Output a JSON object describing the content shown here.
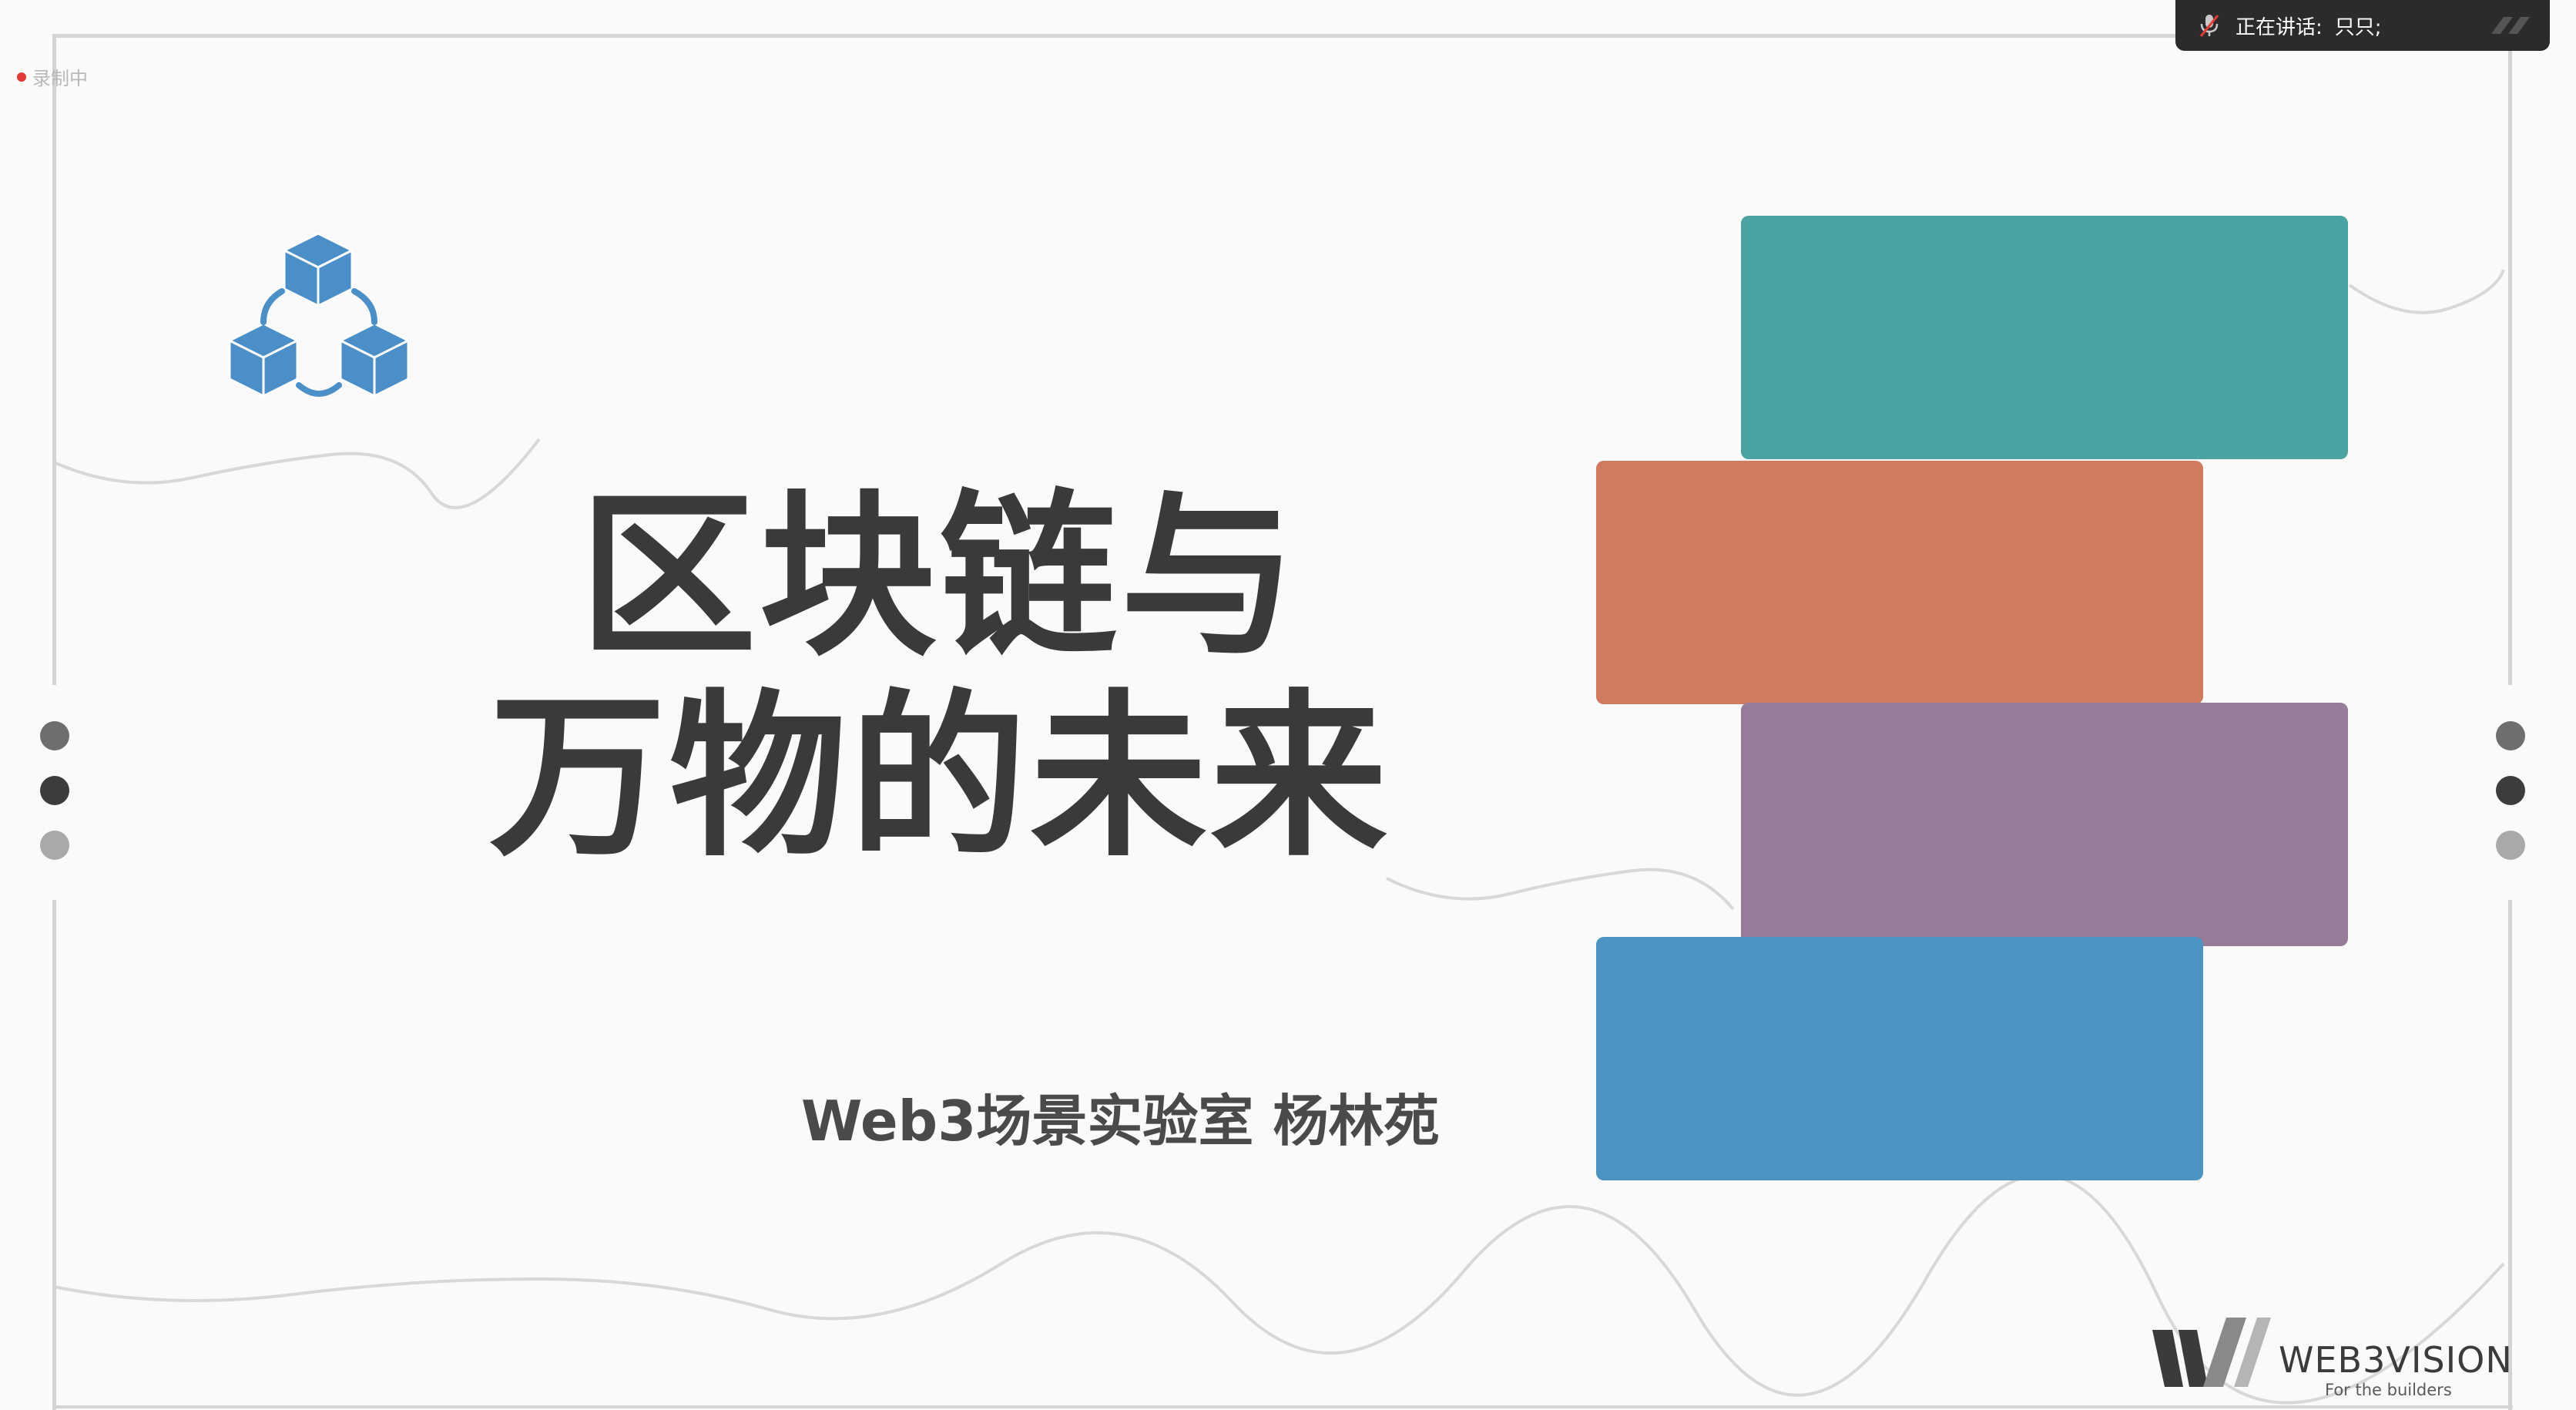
{
  "recording": {
    "label": "录制中"
  },
  "speaker": {
    "label": "正在讲话:",
    "name": "只只;"
  },
  "slide": {
    "title_line1": "区块链与",
    "title_line2": "万物的未来",
    "subtitle": "Web3场景实验室 杨林苑",
    "block_colors": [
      "#4aa3a0",
      "#d07a5f",
      "#967c98",
      "#4a93c2"
    ],
    "logo_color": "#4a8fc7"
  },
  "brand": {
    "name": "WEB3VISION",
    "tagline": "For the builders"
  }
}
